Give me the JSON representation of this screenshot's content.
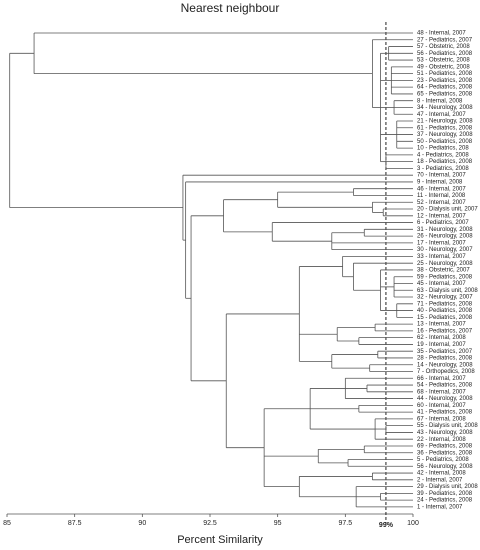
{
  "chart_data": {
    "type": "dendrogram",
    "title": "Nearest neighbour",
    "x_label": "Percent Similarity",
    "xlim": [
      85,
      100
    ],
    "xticks": [
      85,
      87.5,
      90,
      92.5,
      95,
      97.5,
      100
    ],
    "threshold": {
      "value": 99,
      "label": "99%"
    },
    "tree": {
      "similarity": 85.1,
      "children": [
        {
          "similarity": 86.0,
          "children": [
            "48 - Internal, 2007",
            {
              "similarity": 98.5,
              "children": [
                "27 - Pediatrics, 2007",
                {
                  "similarity": 98.8,
                  "children": [
                    {
                      "similarity": 99.1,
                      "children": [
                        "57 - Obstetric, 2008",
                        "56 - Pediatrics, 2008",
                        "53 - Obstetric, 2008"
                      ]
                    },
                    {
                      "similarity": 99.2,
                      "children": [
                        "49 - Obstetric, 2008",
                        "51 - Pediatrics, 2008",
                        "23 - Pediatrics, 2008",
                        "64 - Pediatrics, 2008",
                        "65 - Pediatrics, 2008"
                      ]
                    },
                    {
                      "similarity": 99.3,
                      "children": [
                        "8 - Internal, 2008",
                        "34 - Neurology, 2008",
                        "47 - Internal, 2007"
                      ]
                    },
                    {
                      "similarity": 99.4,
                      "children": [
                        "21 - Neurology, 2008",
                        "61 - Pediatrics, 2008",
                        "37 - Neurology, 2008",
                        "50 - Pediatrics, 2008",
                        "10 - Pediatrics, 208"
                      ]
                    },
                    {
                      "similarity": 99.0,
                      "children": [
                        "4 - Pediatrics, 2008",
                        "18 - Pediatrics, 2008",
                        "3 - Pediatrics, 2008"
                      ]
                    }
                  ]
                }
              ]
            }
          ]
        },
        {
          "similarity": 91.5,
          "children": [
            "70 - Internal, 2007",
            {
              "similarity": 91.6,
              "children": [
                "9 - Internal, 2008",
                {
                  "similarity": 91.8,
                  "children": [
                    {
                      "similarity": 93.0,
                      "children": [
                        {
                          "similarity": 95.0,
                          "children": [
                            {
                              "similarity": 97.8,
                              "children": [
                                "46 - Internal, 2007",
                                "11 - Internal, 2008"
                              ]
                            },
                            {
                              "similarity": 98.5,
                              "children": [
                                "52 - Internal, 2007",
                                {
                                  "similarity": 98.9,
                                  "children": [
                                    "20 - Dialysis unit, 2007",
                                    "12 - Internal, 2007"
                                  ]
                                }
                              ]
                            }
                          ]
                        },
                        {
                          "similarity": 94.8,
                          "children": [
                            "6 - Pediatrics, 2007",
                            {
                              "similarity": 97.0,
                              "children": [
                                {
                                  "similarity": 98.2,
                                  "children": [
                                    "31 - Neurology, 2008",
                                    "26 - Neurology, 2008"
                                  ]
                                },
                                "17 - Internal, 2007",
                                "30 - Neurology, 2007"
                              ]
                            }
                          ]
                        }
                      ]
                    },
                    {
                      "similarity": 93.1,
                      "children": [
                        {
                          "similarity": 95.8,
                          "children": [
                            {
                              "similarity": 97.4,
                              "children": [
                                "33 - Internal, 2007",
                                {
                                  "similarity": 97.8,
                                  "children": [
                                    "25 - Neurology, 2008",
                                    {
                                      "similarity": 98.8,
                                      "children": [
                                        "38 - Obstetric, 2007",
                                        {
                                          "similarity": 99.3,
                                          "children": [
                                            "59 - Pediatrics, 2008",
                                            "45 - Internal, 2007",
                                            "63 - Dialysis unit, 2008",
                                            "32 - Neurology, 2007"
                                          ]
                                        },
                                        {
                                          "similarity": 99.4,
                                          "children": [
                                            "71 - Pediatrics, 2008",
                                            "40 - Pediatrics, 2008",
                                            "15 - Pediatrics, 2008"
                                          ]
                                        }
                                      ]
                                    }
                                  ]
                                }
                              ]
                            },
                            {
                              "similarity": 97.2,
                              "children": [
                                {
                                  "similarity": 98.6,
                                  "children": [
                                    "13 - Internal, 2007",
                                    "16 - Pediatrics, 2007"
                                  ]
                                },
                                {
                                  "similarity": 98.0,
                                  "children": [
                                    "62 - Internal, 2008",
                                    "19 - Internal, 2007"
                                  ]
                                }
                              ]
                            },
                            {
                              "similarity": 97.0,
                              "children": [
                                {
                                  "similarity": 98.7,
                                  "children": [
                                    "35 - Pediatrics, 2007",
                                    "28 - Pediatrics, 2008"
                                  ]
                                },
                                {
                                  "similarity": 98.4,
                                  "children": [
                                    "14 - Neurology, 2008",
                                    "7 - Orthopedics, 2008"
                                  ]
                                }
                              ]
                            }
                          ]
                        },
                        {
                          "similarity": 94.5,
                          "children": [
                            {
                              "similarity": 96.2,
                              "children": [
                                {
                                  "similarity": 97.5,
                                  "children": [
                                    "66 - Internal, 2007",
                                    {
                                      "similarity": 98.3,
                                      "children": [
                                        "54 - Pediatrics, 2008",
                                        "68 - Internal, 2007"
                                      ]
                                    },
                                    "44 - Neurology, 2008"
                                  ]
                                },
                                {
                                  "similarity": 98.0,
                                  "children": [
                                    "60 - Internal, 2007",
                                    "41 - Pediatrics, 2008"
                                  ]
                                },
                                {
                                  "similarity": 98.6,
                                  "children": [
                                    "67 - Internal, 2008",
                                    {
                                      "similarity": 99.0,
                                      "children": [
                                        "55 - Dialysis unit, 2008",
                                        "43 - Neurology, 2008"
                                      ]
                                    },
                                    "22 - Internal, 2008"
                                  ]
                                }
                              ]
                            },
                            {
                              "similarity": 96.5,
                              "children": [
                                {
                                  "similarity": 98.2,
                                  "children": [
                                    "69 - Pediatrics, 2008",
                                    "36 - Pediatrics, 2008"
                                  ]
                                },
                                {
                                  "similarity": 97.6,
                                  "children": [
                                    "5 - Pediatrics, 2008",
                                    "56 - Neurology, 2008"
                                  ]
                                }
                              ]
                            },
                            {
                              "similarity": 95.8,
                              "children": [
                                {
                                  "similarity": 98.5,
                                  "children": [
                                    "42 - Internal, 2008",
                                    "2 - Internal, 2007"
                                  ]
                                },
                                {
                                  "similarity": 97.9,
                                  "children": [
                                    "29 - Dialysis unit, 2008",
                                    {
                                      "similarity": 98.8,
                                      "children": [
                                        "39 - Pediatrics, 2008",
                                        "24 - Pediatrics, 2008"
                                      ]
                                    },
                                    "1 - Internal, 2007"
                                  ]
                                }
                              ]
                            }
                          ]
                        }
                      ]
                    }
                  ]
                }
              ]
            }
          ]
        }
      ]
    }
  }
}
